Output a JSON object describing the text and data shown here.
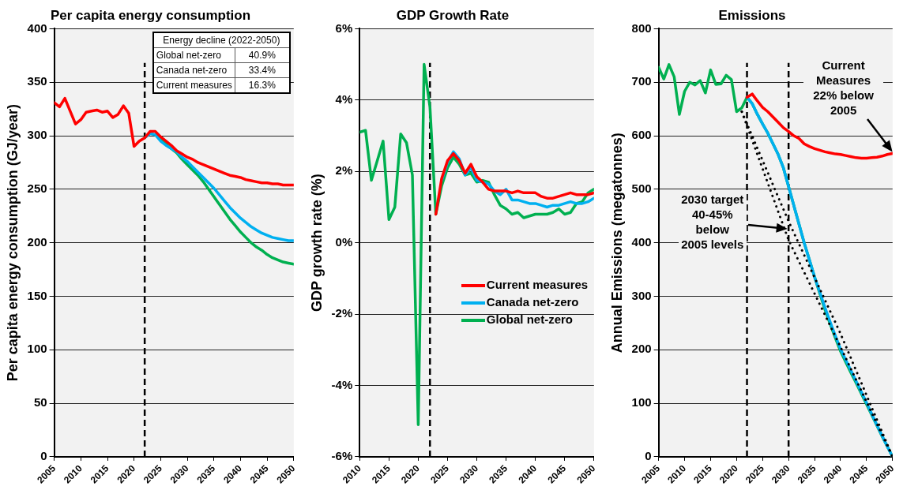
{
  "chart_data": [
    {
      "type": "line",
      "title": "Per capita energy consumption",
      "ylabel": "Per capita energy consumption (GJ/year)",
      "x": [
        2005,
        2006,
        2007,
        2008,
        2009,
        2010,
        2011,
        2012,
        2013,
        2014,
        2015,
        2016,
        2017,
        2018,
        2019,
        2020,
        2021,
        2022,
        2023,
        2024,
        2025,
        2026,
        2027,
        2028,
        2029,
        2030,
        2031,
        2032,
        2033,
        2034,
        2035,
        2036,
        2037,
        2038,
        2039,
        2040,
        2041,
        2042,
        2043,
        2044,
        2045,
        2046,
        2047,
        2048,
        2049,
        2050
      ],
      "xlim": [
        2005,
        2050
      ],
      "xticks": [
        2005,
        2010,
        2015,
        2020,
        2025,
        2030,
        2035,
        2040,
        2045,
        2050
      ],
      "ylim": [
        0,
        400
      ],
      "yticks": [
        0,
        50,
        100,
        150,
        200,
        250,
        300,
        350,
        400
      ],
      "grid": "y",
      "legend": false,
      "marker": "none",
      "line_style": "solid",
      "series": [
        {
          "color": "#ff0000",
          "values": [
            331,
            327,
            335,
            323,
            311,
            315,
            322,
            323,
            324,
            322,
            323,
            317,
            320,
            328,
            321,
            290,
            295,
            298,
            304,
            304,
            299,
            295,
            291,
            286,
            283,
            280,
            278,
            275,
            273,
            271,
            269,
            267,
            265,
            263,
            262,
            261,
            259,
            258,
            257,
            256,
            256,
            255,
            255,
            254,
            254,
            254
          ]
        },
        {
          "color": "#00b0f0",
          "x": [
            2022,
            2023,
            2024,
            2025,
            2026,
            2027,
            2028,
            2029,
            2030,
            2031,
            2032,
            2033,
            2034,
            2035,
            2036,
            2037,
            2038,
            2039,
            2040,
            2041,
            2042,
            2043,
            2044,
            2045,
            2046,
            2047,
            2048,
            2049,
            2050
          ],
          "values": [
            298,
            302,
            301,
            295,
            291,
            288,
            285,
            280,
            276,
            271,
            266,
            261,
            256,
            251,
            245,
            239,
            233,
            228,
            223,
            219,
            215,
            212,
            209,
            207,
            205,
            204,
            203,
            202,
            202
          ]
        },
        {
          "color": "#00b050",
          "x": [
            2024,
            2025,
            2026,
            2027,
            2028,
            2029,
            2030,
            2031,
            2032,
            2033,
            2034,
            2035,
            2036,
            2037,
            2038,
            2039,
            2040,
            2041,
            2042,
            2043,
            2044,
            2045,
            2046,
            2047,
            2048,
            2049,
            2050
          ],
          "values": [
            301,
            296,
            292,
            288,
            284,
            278,
            273,
            268,
            263,
            257,
            250,
            243,
            236,
            229,
            222,
            216,
            210,
            205,
            200,
            196,
            193,
            189,
            186,
            184,
            182,
            181,
            180
          ]
        }
      ],
      "ref_lines": [
        {
          "axis": "x",
          "value": 2022,
          "color": "#000000",
          "line_style": "dashed"
        }
      ],
      "annotations": [
        "Energy decline (2022-2050)",
        "Global net-zero",
        "40.9%",
        "Canada net-zero",
        "33.4%",
        "Current measures",
        "16.3%"
      ]
    },
    {
      "type": "line",
      "title": "GDP Growth Rate",
      "ylabel": "GDP growth rate (%)",
      "x": [
        2010,
        2011,
        2012,
        2013,
        2014,
        2015,
        2016,
        2017,
        2018,
        2019,
        2020,
        2021,
        2022,
        2023,
        2024,
        2025,
        2026,
        2027,
        2028,
        2029,
        2030,
        2031,
        2032,
        2033,
        2034,
        2035,
        2036,
        2037,
        2038,
        2039,
        2040,
        2041,
        2042,
        2043,
        2044,
        2045,
        2046,
        2047,
        2048,
        2049,
        2050
      ],
      "xlim": [
        2010,
        2050
      ],
      "xticks": [
        2010,
        2015,
        2020,
        2025,
        2030,
        2035,
        2040,
        2045,
        2050
      ],
      "ylim": [
        -6,
        6
      ],
      "yticks": [
        {
          "value": -6,
          "label": "-6%"
        },
        {
          "value": -4,
          "label": "-4%"
        },
        {
          "value": -2,
          "label": "-2%"
        },
        {
          "value": 0,
          "label": "0%"
        },
        {
          "value": 2,
          "label": "2%"
        },
        {
          "value": 4,
          "label": "4%"
        },
        {
          "value": 6,
          "label": "6%"
        }
      ],
      "grid": "y",
      "legend": "bottom right",
      "marker": "none",
      "line_style": "solid",
      "series": [
        {
          "name": "Current measures",
          "color": "#ff0000",
          "x": [
            2023,
            2024,
            2025,
            2026,
            2027,
            2028,
            2029,
            2030,
            2031,
            2032,
            2033,
            2034,
            2035,
            2036,
            2037,
            2038,
            2039,
            2040,
            2041,
            2042,
            2043,
            2044,
            2045,
            2046,
            2047,
            2048,
            2049,
            2050
          ],
          "values": [
            0.8,
            1.8,
            2.3,
            2.5,
            2.3,
            1.95,
            2.2,
            1.85,
            1.7,
            1.5,
            1.45,
            1.45,
            1.45,
            1.4,
            1.45,
            1.4,
            1.4,
            1.4,
            1.3,
            1.25,
            1.25,
            1.3,
            1.35,
            1.4,
            1.35,
            1.35,
            1.35,
            1.4
          ]
        },
        {
          "name": "Canada net-zero",
          "color": "#00b0f0",
          "x": [
            2024,
            2025,
            2026,
            2027,
            2028,
            2029,
            2030,
            2031,
            2032,
            2033,
            2034,
            2035,
            2036,
            2037,
            2038,
            2039,
            2040,
            2041,
            2042,
            2043,
            2044,
            2045,
            2046,
            2047,
            2048,
            2049,
            2050
          ],
          "values": [
            1.75,
            2.25,
            2.55,
            2.35,
            1.9,
            2.1,
            1.75,
            1.7,
            1.65,
            1.45,
            1.35,
            1.5,
            1.2,
            1.2,
            1.15,
            1.1,
            1.1,
            1.05,
            1.0,
            1.05,
            1.05,
            1.1,
            1.15,
            1.1,
            1.1,
            1.15,
            1.25
          ]
        },
        {
          "name": "Global net-zero",
          "color": "#00b050",
          "values": [
            3.1,
            3.15,
            1.75,
            2.3,
            2.85,
            0.65,
            1.0,
            3.05,
            2.8,
            1.9,
            -5.1,
            5.0,
            3.8,
            0.8,
            1.6,
            2.1,
            2.4,
            2.2,
            1.9,
            1.95,
            1.7,
            1.75,
            1.7,
            1.35,
            1.05,
            0.95,
            0.8,
            0.85,
            0.7,
            0.75,
            0.8,
            0.8,
            0.8,
            0.85,
            0.95,
            0.8,
            0.85,
            1.1,
            1.15,
            1.4,
            1.5
          ]
        }
      ],
      "ref_lines": [
        {
          "axis": "x",
          "value": 2022,
          "color": "#000000",
          "line_style": "dashed"
        }
      ]
    },
    {
      "type": "line",
      "title": "Emissions",
      "ylabel": "Annual Emissions (megatonnes)",
      "x": [
        2005,
        2006,
        2007,
        2008,
        2009,
        2010,
        2011,
        2012,
        2013,
        2014,
        2015,
        2016,
        2017,
        2018,
        2019,
        2020,
        2021,
        2022,
        2023,
        2024,
        2025,
        2026,
        2027,
        2028,
        2029,
        2030,
        2031,
        2032,
        2033,
        2034,
        2035,
        2036,
        2037,
        2038,
        2039,
        2040,
        2041,
        2042,
        2043,
        2044,
        2045,
        2046,
        2047,
        2048,
        2049,
        2050
      ],
      "xlim": [
        2005,
        2050
      ],
      "xticks": [
        2005,
        2010,
        2015,
        2020,
        2025,
        2030,
        2035,
        2040,
        2045,
        2050
      ],
      "ylim": [
        0,
        800
      ],
      "yticks": [
        0,
        100,
        200,
        300,
        400,
        500,
        600,
        700,
        800
      ],
      "grid": "y",
      "legend": false,
      "marker": "none",
      "line_style": "solid",
      "series": [
        {
          "color": "#000000",
          "line_style": "dotted",
          "x": [
            2021,
            2030,
            2040,
            2050
          ],
          "values": [
            645,
            440,
            230,
            0
          ]
        },
        {
          "color": "#000000",
          "line_style": "dotted",
          "x": [
            2021,
            2030,
            2040,
            2050
          ],
          "values": [
            645,
            405,
            205,
            0
          ]
        },
        {
          "color": "#ff0000",
          "x": [
            2022,
            2023,
            2024,
            2025,
            2026,
            2027,
            2028,
            2029,
            2030,
            2031,
            2032,
            2033,
            2034,
            2035,
            2036,
            2037,
            2038,
            2039,
            2040,
            2041,
            2042,
            2043,
            2044,
            2045,
            2046,
            2047,
            2048,
            2049,
            2050
          ],
          "values": [
            672,
            678,
            665,
            653,
            645,
            635,
            625,
            615,
            608,
            600,
            595,
            585,
            580,
            576,
            573,
            570,
            568,
            566,
            565,
            563,
            561,
            559,
            558,
            558,
            559,
            560,
            562,
            565,
            567
          ]
        },
        {
          "color": "#00b0f0",
          "x": [
            2022,
            2023,
            2024,
            2025,
            2026,
            2027,
            2028,
            2029,
            2030,
            2031,
            2032,
            2033,
            2034,
            2035,
            2036,
            2037,
            2038,
            2039,
            2040,
            2041,
            2042,
            2043,
            2044,
            2045,
            2046,
            2047,
            2048,
            2049,
            2050
          ],
          "values": [
            672,
            660,
            640,
            622,
            605,
            585,
            565,
            540,
            505,
            470,
            435,
            400,
            368,
            336,
            308,
            279,
            252,
            226,
            201,
            181,
            161,
            141,
            121,
            101,
            80,
            59,
            39,
            19,
            0
          ]
        },
        {
          "color": "#00b050",
          "values": [
            728,
            706,
            733,
            710,
            640,
            683,
            700,
            695,
            703,
            680,
            723,
            696,
            697,
            713,
            705,
            645,
            652,
            672,
            660,
            640,
            622,
            605,
            585,
            565,
            540,
            505,
            470,
            435,
            400,
            368,
            336,
            305,
            275,
            248,
            222,
            197,
            177,
            157,
            138,
            118,
            98,
            78,
            58,
            38,
            19,
            0
          ]
        }
      ],
      "ref_lines": [
        {
          "axis": "x",
          "value": 2022,
          "color": "#000000",
          "line_style": "dashed"
        },
        {
          "axis": "x",
          "value": 2030,
          "color": "#000000",
          "line_style": "dashed"
        }
      ],
      "annotations": [
        "2030 target 40-45% below 2005 levels",
        "Current Measures 22% below 2005"
      ]
    }
  ]
}
